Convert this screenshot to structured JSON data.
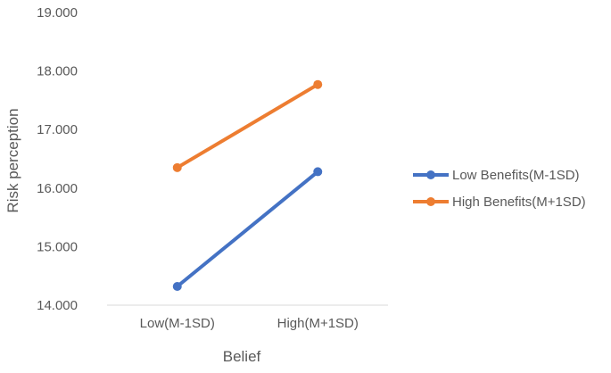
{
  "chart_data": {
    "type": "line",
    "title": "",
    "xlabel": "Belief",
    "ylabel": "Risk perception",
    "categories": [
      "Low(M-1SD)",
      "High(M+1SD)"
    ],
    "ylim": [
      14.0,
      19.0
    ],
    "yticks": [
      "14.000",
      "15.000",
      "16.000",
      "17.000",
      "18.000",
      "19.000"
    ],
    "grid": false,
    "legend_position": "right",
    "series": [
      {
        "name": "Low Benefits(M-1SD)",
        "values": [
          14.32,
          16.28
        ],
        "color": "#4472C4"
      },
      {
        "name": "High Benefits(M+1SD)",
        "values": [
          16.35,
          17.77
        ],
        "color": "#ED7D31"
      }
    ]
  }
}
